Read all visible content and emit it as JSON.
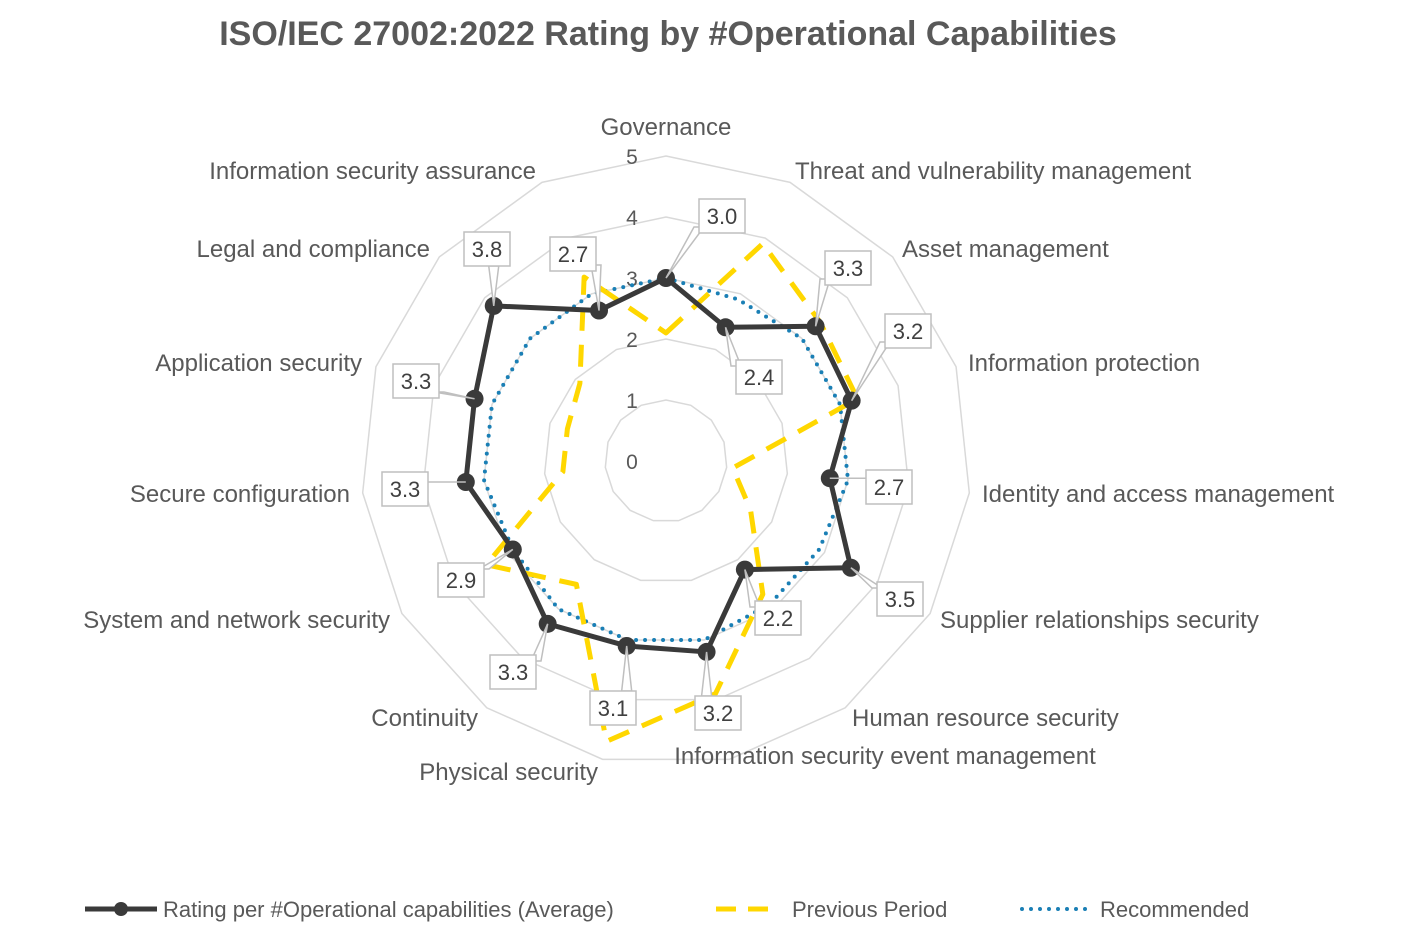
{
  "chart_data": {
    "type": "radar",
    "title": "ISO/IEC 27002:2022 Rating by #Operational Capabilities",
    "categories": [
      "Governance",
      "Threat and vulnerability management",
      "Asset management",
      "Information protection",
      "Identity and access management",
      "Supplier relationships security",
      "Human resource security",
      "Information security event management",
      "Physical security",
      "Continuity",
      "System and network security",
      "Secure configuration",
      "Application security",
      "Legal and compliance",
      "Information security assurance"
    ],
    "radial_ticks": [
      "0",
      "1",
      "2",
      "3",
      "4",
      "5"
    ],
    "rlim": [
      0,
      5
    ],
    "grid": true,
    "legend_position": "bottom",
    "series": [
      {
        "name": "Rating per #Operational capabilities (Average)",
        "color": "#3a3a3a",
        "style": "solid-markers",
        "values": [
          3.0,
          2.4,
          3.3,
          3.2,
          2.7,
          3.5,
          2.2,
          3.2,
          3.1,
          3.3,
          2.9,
          3.3,
          3.3,
          3.8,
          2.7
        ],
        "data_labels": [
          "3.0",
          "2.4",
          "3.3",
          "3.2",
          "2.7",
          "3.5",
          "2.2",
          "3.2",
          "3.1",
          "3.3",
          "2.9",
          "3.3",
          "3.3",
          "3.8",
          "2.7"
        ]
      },
      {
        "name": "Previous Period",
        "color": "#ffd700",
        "style": "dashed",
        "values": [
          2.1,
          3.9,
          3.4,
          3.3,
          1.1,
          1.6,
          2.7,
          3.9,
          4.7,
          2.5,
          3.4,
          1.7,
          1.7,
          1.9,
          3.3
        ]
      },
      {
        "name": "Recommended",
        "color": "#1a7fb5",
        "style": "dotted",
        "values": [
          3.0,
          2.9,
          3.0,
          3.0,
          3.0,
          2.9,
          2.9,
          3.0,
          3.0,
          3.0,
          2.9,
          3.0,
          3.0,
          3.0,
          3.0
        ]
      }
    ]
  }
}
